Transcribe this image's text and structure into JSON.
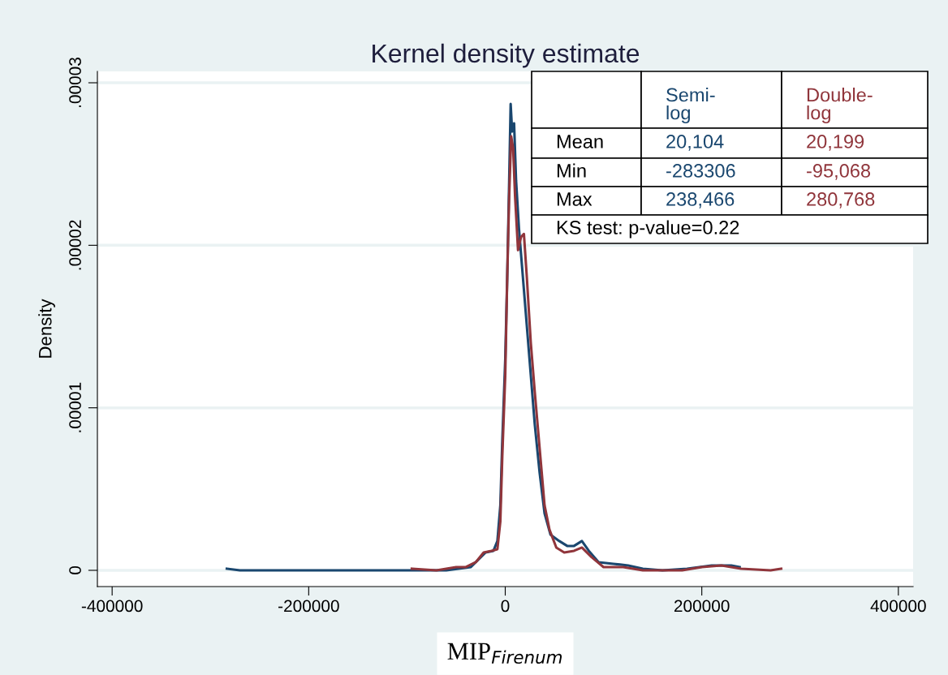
{
  "chart_data": {
    "type": "line",
    "title": "Kernel density estimate",
    "xlabel": "MIP$_{Firenum}$",
    "ylabel": "Density",
    "xlim": [
      -415000,
      415000
    ],
    "ylim": [
      -1e-06,
      3.07e-05
    ],
    "xticks": [
      -400000,
      -200000,
      0,
      200000,
      400000
    ],
    "yticks": [
      0,
      {
        "value": 1e-05,
        "label": ".00001"
      },
      {
        "value": 2e-05,
        "label": ".00002"
      },
      {
        "value": 3e-05,
        "label": ".00003"
      }
    ],
    "grid": "y",
    "legend": false,
    "marker": "none",
    "line_style": "solid",
    "series": [
      {
        "name": "Semi-\nlog",
        "color": "#1a476f",
        "x": [
          -283306,
          -270000,
          -100000,
          -60000,
          -35000,
          -25000,
          -20000,
          -12000,
          -8000,
          -5000,
          -3000,
          0,
          2000,
          4000,
          5500,
          7000,
          9000,
          11000,
          14000,
          18000,
          22000,
          26000,
          30000,
          35000,
          40000,
          46000,
          55000,
          63000,
          70000,
          78000,
          85000,
          95000,
          110000,
          125000,
          140000,
          160000,
          185000,
          210000,
          230000,
          238466
        ],
        "values": [
          1e-07,
          0,
          0,
          0,
          2e-07,
          8e-07,
          1.1e-06,
          1.2e-06,
          1.8e-06,
          4e-06,
          8e-06,
          1.3e-05,
          1.8e-05,
          2.4e-05,
          2.87e-05,
          2.7e-05,
          2.75e-05,
          2.4e-05,
          2.1e-05,
          1.8e-05,
          1.5e-05,
          1.2e-05,
          9e-06,
          6e-06,
          3.5e-06,
          2.2e-06,
          1.8e-06,
          1.5e-06,
          1.5e-06,
          1.8e-06,
          1.2e-06,
          5e-07,
          4e-07,
          3e-07,
          1e-07,
          0,
          1e-07,
          3e-07,
          3e-07,
          2e-07
        ]
      },
      {
        "name": "Double-\nlog",
        "color": "#90353b",
        "x": [
          -95068,
          -70000,
          -50000,
          -40000,
          -30000,
          -22000,
          -14000,
          -8000,
          -5000,
          -3000,
          0,
          2000,
          4000,
          6000,
          8000,
          10000,
          13000,
          16000,
          19000,
          22000,
          26000,
          30000,
          35000,
          40000,
          45000,
          52000,
          60000,
          70000,
          78000,
          88000,
          100000,
          120000,
          140000,
          180000,
          200000,
          220000,
          240000,
          270000,
          280768
        ],
        "values": [
          1e-07,
          0,
          2e-07,
          2e-07,
          5e-07,
          1.1e-06,
          1.2e-06,
          1.3e-06,
          3e-06,
          7e-06,
          1.2e-05,
          1.8e-05,
          2.3e-05,
          2.67e-05,
          2.6e-05,
          2.3e-05,
          1.97e-05,
          2.05e-05,
          2.07e-05,
          1.8e-05,
          1.4e-05,
          1.1e-05,
          7.5e-06,
          4e-06,
          2.5e-06,
          1.4e-06,
          1.1e-06,
          1.2e-06,
          1.4e-06,
          8e-07,
          2e-07,
          2e-07,
          0,
          0,
          2e-07,
          3e-07,
          1e-07,
          0,
          1e-07
        ]
      }
    ],
    "annotations": [
      "Mean",
      "20,104",
      "20,199",
      "Min",
      "-283306",
      "-95,068",
      "Max",
      "238,466",
      "280,768",
      "KS test: p-value=0.22"
    ]
  }
}
